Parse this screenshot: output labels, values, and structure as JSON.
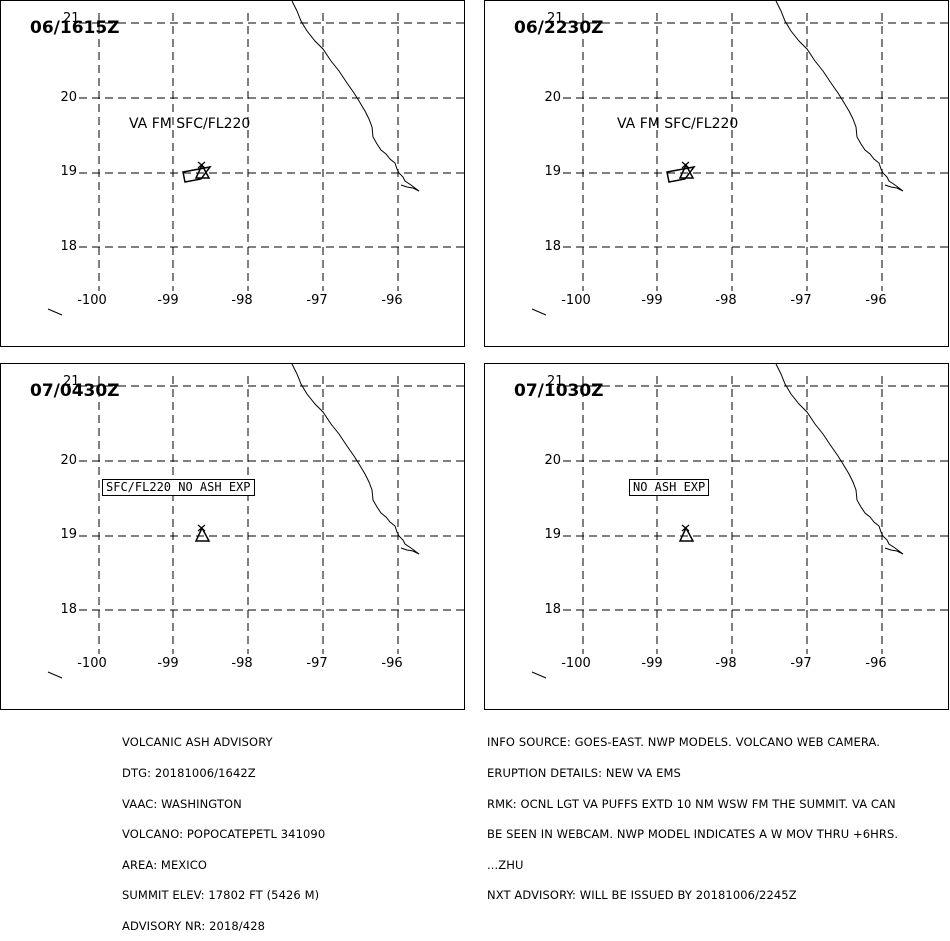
{
  "panels": [
    {
      "time": "06/1615Z",
      "label": "VA FM SFC/FL220",
      "label_style": "plain",
      "ash_polygon": true,
      "lat_labels": [
        "20",
        "19",
        "18"
      ],
      "top_lat_label": "21",
      "lon_labels": [
        "-100",
        "-99",
        "-98",
        "-97",
        "-96"
      ]
    },
    {
      "time": "06/2230Z",
      "label": "VA FM SFC/FL220",
      "label_style": "plain",
      "ash_polygon": true,
      "lat_labels": [
        "20",
        "19",
        "18"
      ],
      "top_lat_label": "21",
      "lon_labels": [
        "-100",
        "-99",
        "-98",
        "-97",
        "-96"
      ]
    },
    {
      "time": "07/0430Z",
      "label": "SFC/FL220 NO ASH EXP",
      "label_style": "boxed",
      "ash_polygon": false,
      "lat_labels": [
        "20",
        "19",
        "18"
      ],
      "top_lat_label": "21",
      "lon_labels": [
        "-100",
        "-99",
        "-98",
        "-97",
        "-96"
      ]
    },
    {
      "time": "07/1030Z",
      "label": "NO ASH EXP",
      "label_style": "boxed",
      "ash_polygon": false,
      "lat_labels": [
        "20",
        "19",
        "18"
      ],
      "top_lat_label": "21",
      "lon_labels": [
        "-100",
        "-99",
        "-98",
        "-97",
        "-96"
      ]
    }
  ],
  "advisory_left": [
    "VOLCANIC ASH ADVISORY",
    "DTG: 20181006/1642Z",
    "VAAC: WASHINGTON",
    "VOLCANO: POPOCATEPETL 341090",
    "AREA: MEXICO",
    "SUMMIT ELEV: 17802 FT (5426 M)",
    "ADVISORY NR: 2018/428"
  ],
  "advisory_right": [
    "INFO SOURCE: GOES-EAST. NWP MODELS. VOLCANO WEB CAMERA.",
    "ERUPTION DETAILS: NEW VA EMS",
    "RMK: OCNL LGT VA PUFFS EXTD 10 NM WSW FM THE SUMMIT. VA CAN",
    "BE SEEN IN WEBCAM. NWP MODEL INDICATES A W MOV THRU +6HRS.",
    "...ZHU",
    "NXT ADVISORY: WILL BE ISSUED BY 20181006/2245Z"
  ]
}
